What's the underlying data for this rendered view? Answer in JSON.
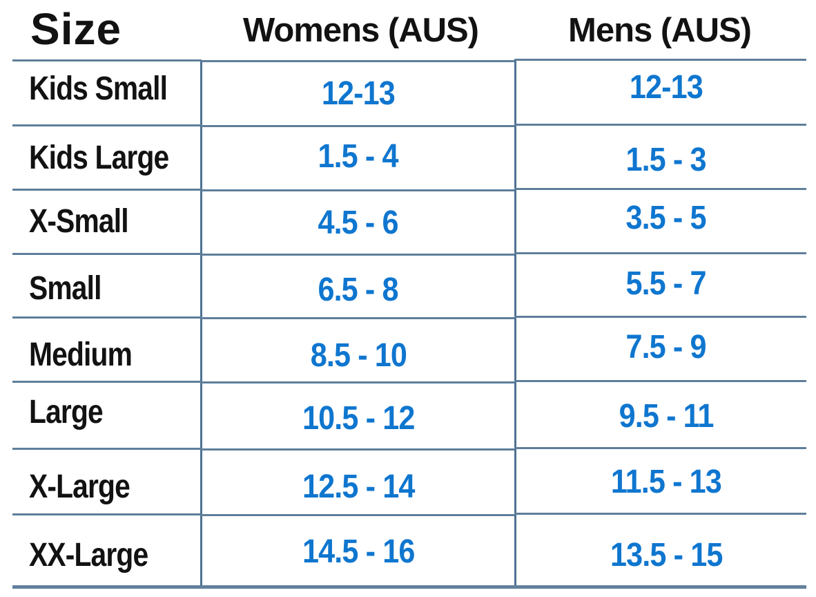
{
  "colors": {
    "value_text": "#0f76cf",
    "label_text": "#121212",
    "horizontal_rule": "#5e7e9a",
    "vertical_rule": "#4e7191",
    "background": "#ffffff"
  },
  "chart_data": {
    "type": "table",
    "columns": [
      "Size",
      "Womens (AUS)",
      "Mens (AUS)"
    ],
    "rows": [
      {
        "size": "Kids Small",
        "womens": "12-13",
        "mens": "12-13"
      },
      {
        "size": "Kids Large",
        "womens": "1.5 - 4",
        "mens": "1.5 - 3"
      },
      {
        "size": "X-Small",
        "womens": "4.5 - 6",
        "mens": "3.5 - 5"
      },
      {
        "size": "Small",
        "womens": "6.5 - 8",
        "mens": "5.5 - 7"
      },
      {
        "size": "Medium",
        "womens": "8.5 - 10",
        "mens": "7.5 - 9"
      },
      {
        "size": "Large",
        "womens": "10.5 - 12",
        "mens": "9.5 - 11"
      },
      {
        "size": "X-Large",
        "womens": "12.5 - 14",
        "mens": "11.5 - 13"
      },
      {
        "size": "XX-Large",
        "womens": "14.5 - 16",
        "mens": "13.5 - 15"
      }
    ]
  }
}
